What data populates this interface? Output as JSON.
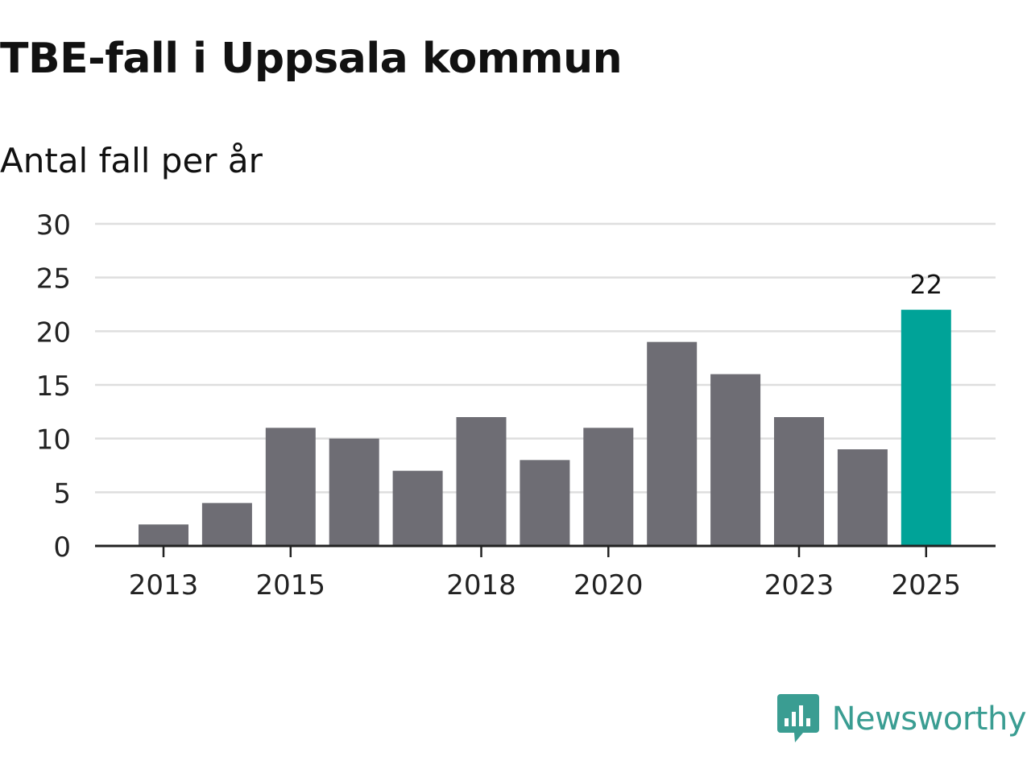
{
  "colors": {
    "bar": "#6e6d74",
    "highlight": "#00a398",
    "grid": "#dedede",
    "axis": "#222222",
    "brand": "#3a9d92"
  },
  "brand": {
    "name": "Newsworthy",
    "icon": "newsworthy-logo-icon"
  },
  "chart_data": {
    "type": "bar",
    "title": "TBE-fall i Uppsala kommun",
    "subtitle": "Antal fall per år",
    "xlabel": "",
    "ylabel": "",
    "categories": [
      "2013",
      "2014",
      "2015",
      "2016",
      "2017",
      "2018",
      "2019",
      "2020",
      "2021",
      "2022",
      "2023",
      "2024",
      "2025"
    ],
    "values": [
      2,
      4,
      11,
      10,
      7,
      12,
      8,
      11,
      19,
      16,
      12,
      9,
      22
    ],
    "x_tick_labels": [
      "2013",
      "2015",
      "2018",
      "2020",
      "2023",
      "2025"
    ],
    "y_ticks": [
      0,
      5,
      10,
      15,
      20,
      25,
      30
    ],
    "ylim": [
      0,
      30
    ],
    "grid": true,
    "highlight": {
      "category": "2025",
      "label": "22"
    }
  }
}
